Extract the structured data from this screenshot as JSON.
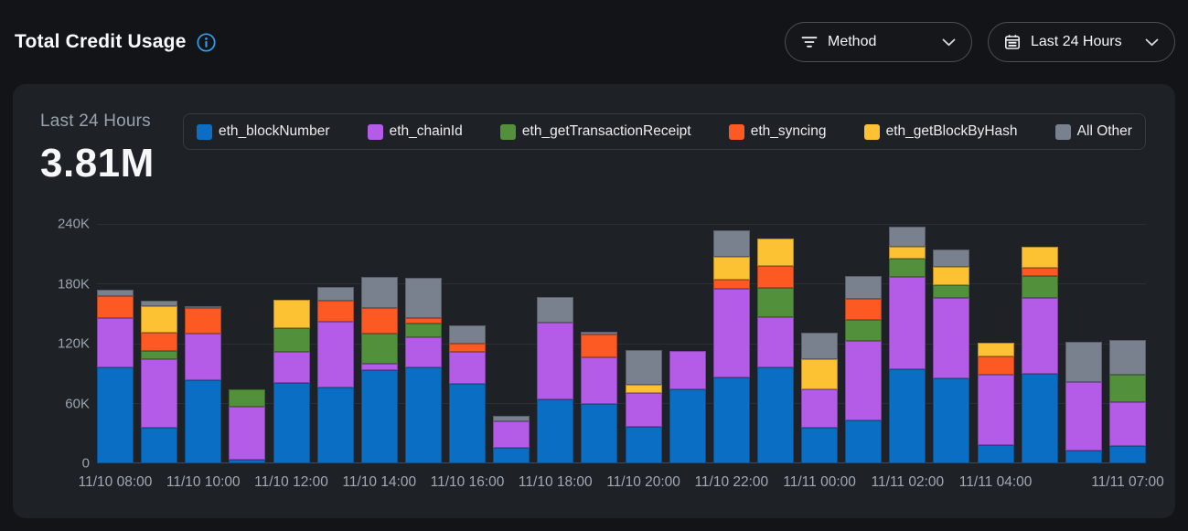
{
  "header": {
    "title": "Total Credit Usage",
    "method_filter": {
      "label": "Method"
    },
    "time_filter": {
      "label": "Last 24 Hours"
    }
  },
  "panel": {
    "period_label": "Last 24 Hours",
    "total_value": "3.81M"
  },
  "icons": {
    "info": "info-circle",
    "filter": "filter-lines",
    "calendar": "calendar",
    "chevron": "chevron-down"
  },
  "colors": {
    "info_accent": "#2f9ff2",
    "panel_bg": "#1e2126",
    "page_bg": "#121417"
  },
  "chart_data": {
    "type": "bar",
    "stacked": true,
    "title": "Total Credit Usage",
    "period": "Last 24 Hours",
    "total": "3.81M",
    "unit": "K credits (values below are in thousands)",
    "bar_count": 24,
    "ylim_k": [
      0,
      240
    ],
    "ytick_labels": [
      "0",
      "60K",
      "120K",
      "180K",
      "240K"
    ],
    "x_ticks": [
      {
        "index": 0,
        "label": "11/10 08:00"
      },
      {
        "index": 2,
        "label": "11/10 10:00"
      },
      {
        "index": 4,
        "label": "11/10 12:00"
      },
      {
        "index": 6,
        "label": "11/10 14:00"
      },
      {
        "index": 8,
        "label": "11/10 16:00"
      },
      {
        "index": 10,
        "label": "11/10 18:00"
      },
      {
        "index": 12,
        "label": "11/10 20:00"
      },
      {
        "index": 14,
        "label": "11/10 22:00"
      },
      {
        "index": 16,
        "label": "11/11 00:00"
      },
      {
        "index": 18,
        "label": "11/11 02:00"
      },
      {
        "index": 20,
        "label": "11/11 04:00"
      },
      {
        "index": 23,
        "label": "11/11 07:00"
      }
    ],
    "series": [
      {
        "name": "eth_blockNumber",
        "color": "#0a6fc4",
        "values": [
          96,
          36,
          83,
          4,
          81,
          76,
          93,
          96,
          80,
          16,
          64,
          60,
          37,
          74,
          86,
          96,
          36,
          43,
          94,
          85,
          18,
          90,
          13,
          17
        ]
      },
      {
        "name": "eth_chainId",
        "color": "#b45ce8",
        "values": [
          50,
          68,
          47,
          53,
          31,
          66,
          7,
          30,
          32,
          26,
          77,
          46,
          34,
          39,
          89,
          51,
          38,
          80,
          93,
          81,
          71,
          76,
          69,
          44
        ]
      },
      {
        "name": "eth_getTransactionReceipt",
        "color": "#52903c",
        "values": [
          0,
          9,
          0,
          17,
          24,
          0,
          30,
          14,
          0,
          0,
          0,
          0,
          0,
          0,
          0,
          29,
          0,
          21,
          18,
          13,
          0,
          22,
          0,
          28
        ]
      },
      {
        "name": "eth_syncing",
        "color": "#fc5a22",
        "values": [
          22,
          18,
          26,
          0,
          0,
          21,
          26,
          6,
          8,
          0,
          0,
          23,
          0,
          0,
          9,
          22,
          0,
          21,
          0,
          0,
          18,
          8,
          0,
          0
        ]
      },
      {
        "name": "eth_getBlockByHash",
        "color": "#fdc233",
        "values": [
          0,
          27,
          0,
          0,
          28,
          0,
          0,
          0,
          0,
          0,
          0,
          0,
          8,
          0,
          23,
          27,
          30,
          0,
          12,
          18,
          14,
          21,
          0,
          0
        ]
      },
      {
        "name": "All Other",
        "color": "#79818f",
        "values": [
          6,
          5,
          2,
          0,
          0,
          14,
          31,
          40,
          18,
          6,
          26,
          3,
          35,
          0,
          27,
          0,
          27,
          23,
          20,
          17,
          0,
          0,
          40,
          35
        ]
      }
    ],
    "legend_position": "top"
  }
}
